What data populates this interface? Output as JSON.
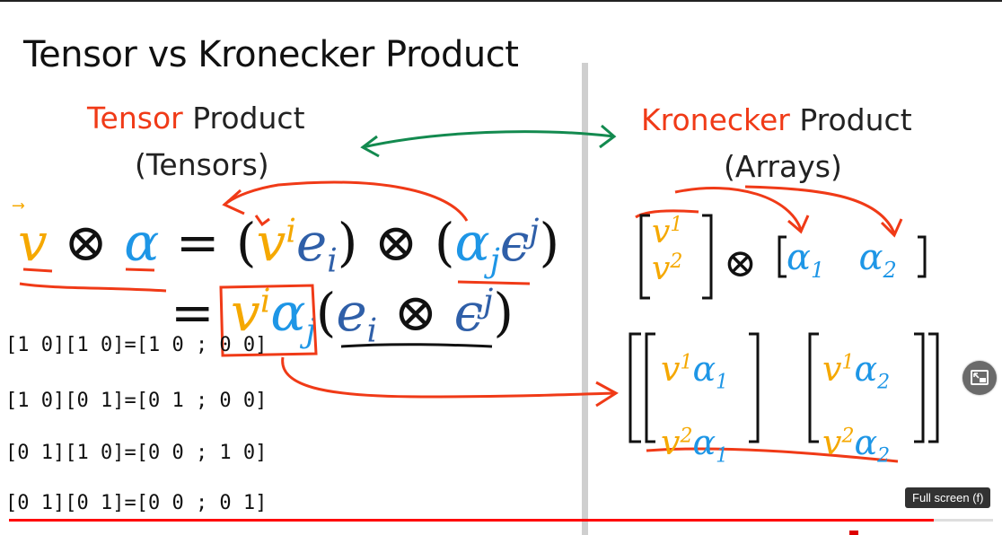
{
  "slide": {
    "title": "Tensor vs Kronecker Product",
    "left_heading": {
      "word": "Tensor",
      "rest": " Product",
      "sub": "(Tensors)"
    },
    "right_heading": {
      "word": "Kronecker",
      "rest": " Product",
      "sub": "(Arrays)"
    },
    "colors": {
      "accent_red": "#f03a17",
      "vector_orange": "#f5a800",
      "covector_blue": "#1e96e6",
      "basis_blue": "#2f5fa8",
      "arrow_green": "#138a4f"
    },
    "handwritten": [
      {
        "left": "[1 0]",
        "mid": "[1 0]",
        "eq": "=",
        "right": "[1 0 ; 0 0]"
      },
      {
        "left": "[1 0]",
        "mid": "[0 1]",
        "eq": "=",
        "right": "[0 1 ; 0 0]"
      },
      {
        "left": "[0 1]",
        "mid": "[1 0]",
        "eq": "=",
        "right": "[0 0 ; 1 0]"
      },
      {
        "left": "[0 1]",
        "mid": "[0 1]",
        "eq": "=",
        "right": "[0 0 ; 0 1]"
      }
    ]
  },
  "player": {
    "tooltip": "Full screen (f)",
    "progress_fraction": 0.94,
    "fullscreen_icon": "picture-in-picture-icon"
  }
}
